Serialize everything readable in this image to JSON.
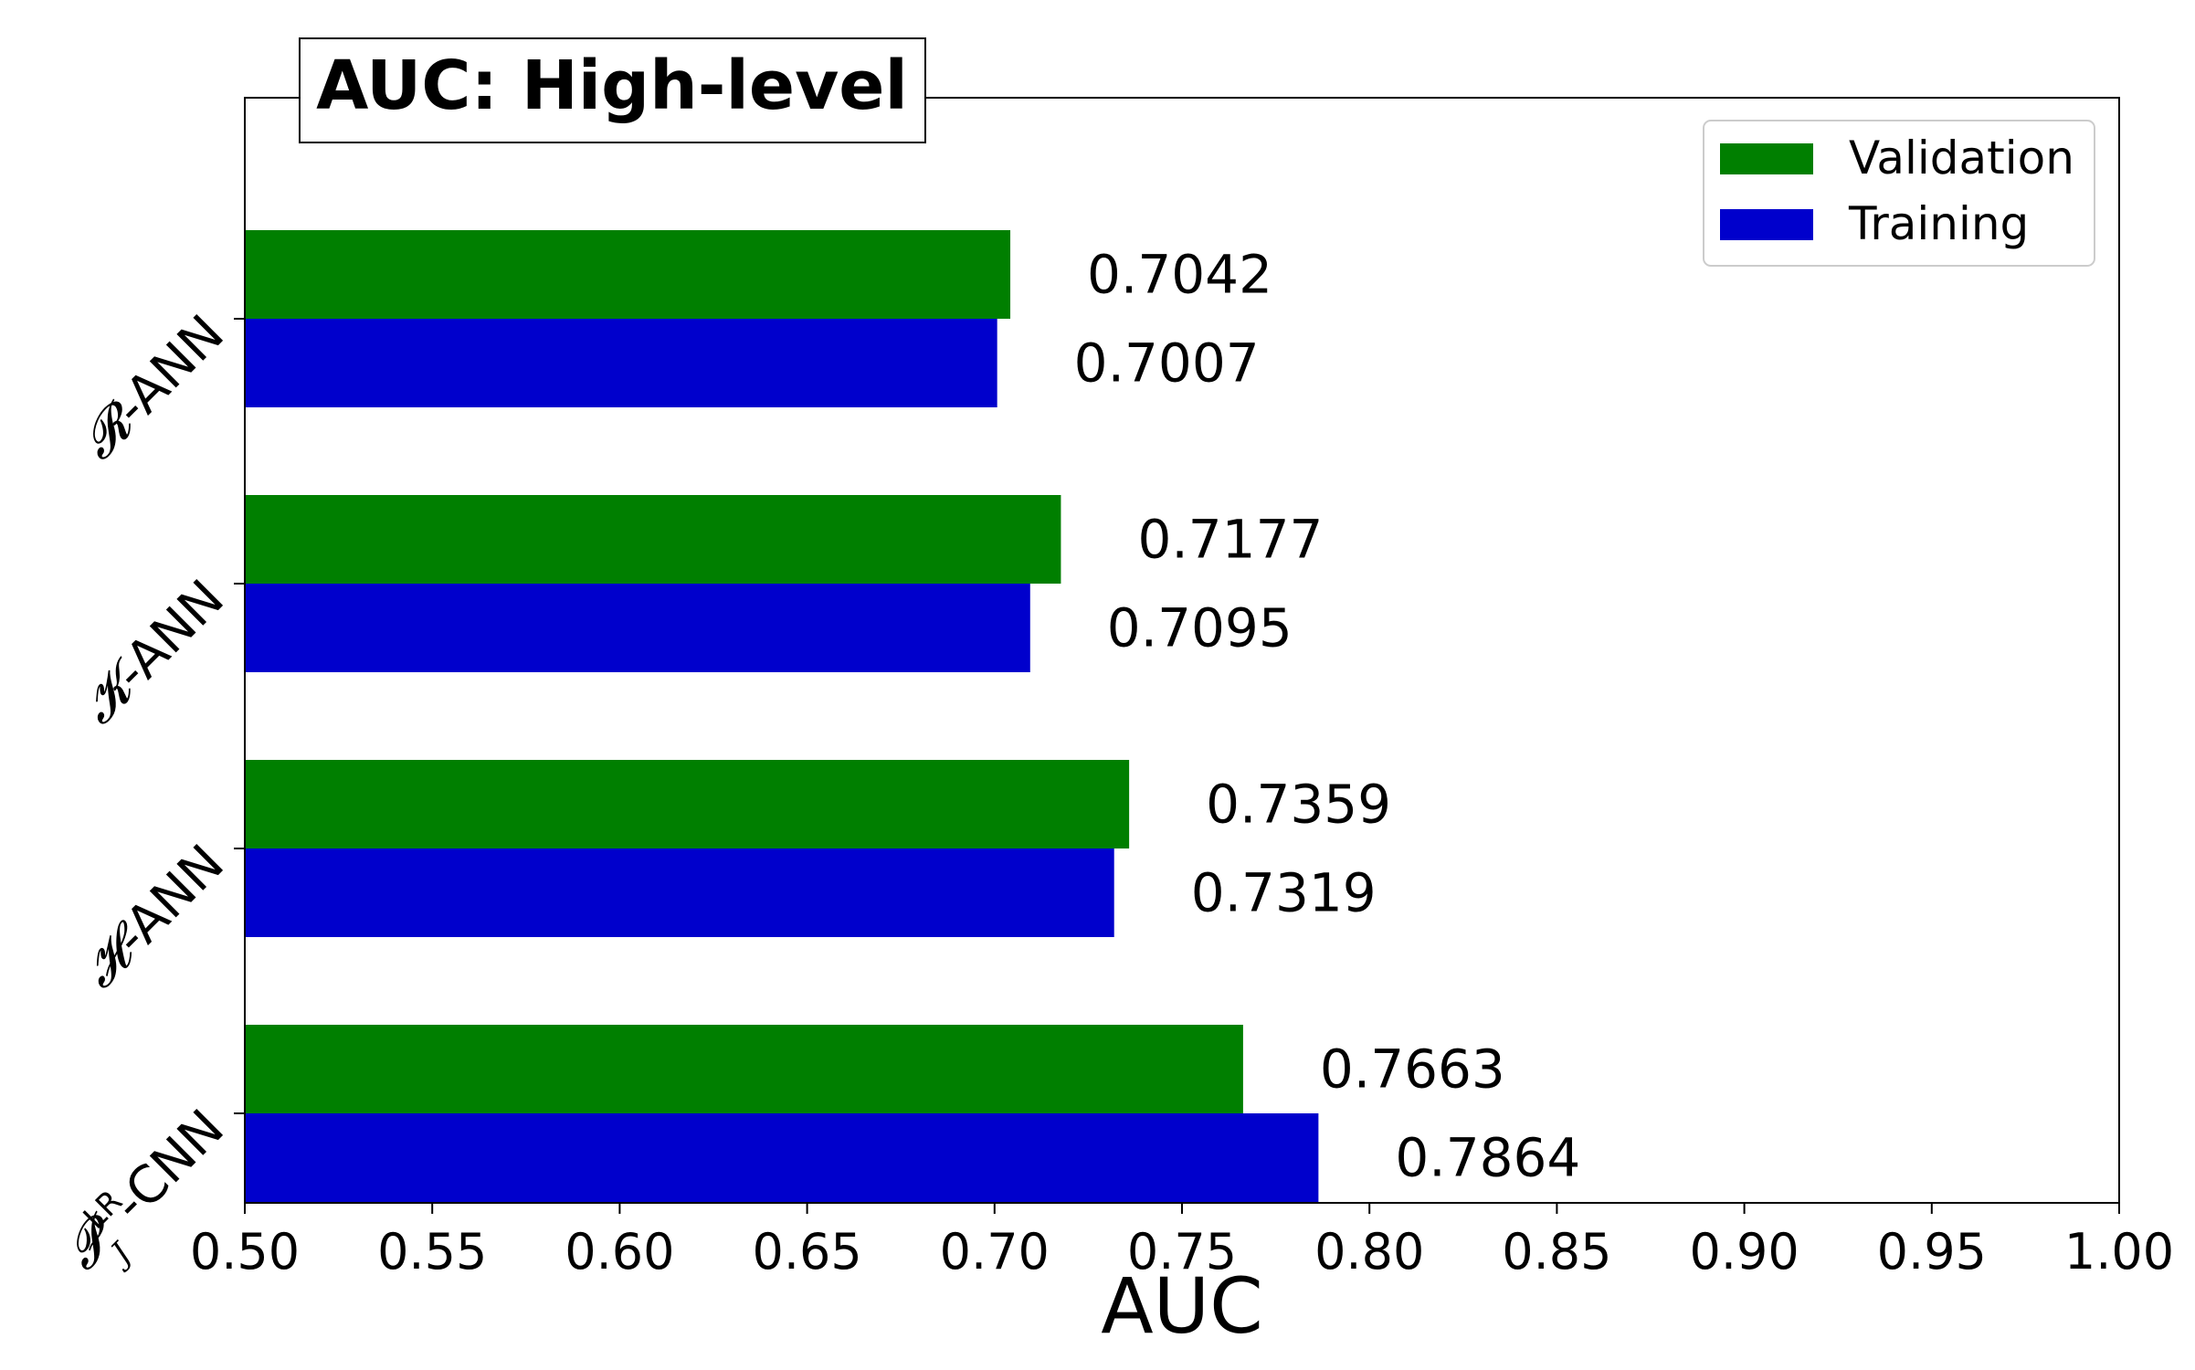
{
  "chart_data": {
    "type": "bar",
    "orientation": "horizontal",
    "title": "AUC: High-level",
    "xlabel": "AUC",
    "ylabel": "",
    "xlim": [
      0.5,
      1.0
    ],
    "xticks": [
      "0.50",
      "0.55",
      "0.60",
      "0.65",
      "0.70",
      "0.75",
      "0.80",
      "0.85",
      "0.90",
      "0.95",
      "1.00"
    ],
    "categories": [
      {
        "symbol": "𝓡",
        "suffix": "-ANN"
      },
      {
        "symbol": "𝓚",
        "suffix": "-ANN"
      },
      {
        "symbol": "𝓗",
        "suffix": "-ANN"
      },
      {
        "symbol": "𝓟",
        "sub": "J",
        "sup": "LR",
        "suffix": "-CNN"
      }
    ],
    "series": [
      {
        "name": "Validation",
        "color": "#007f00",
        "values": [
          0.7042,
          0.7177,
          0.7359,
          0.7663
        ],
        "labels": [
          "0.7042",
          "0.7177",
          "0.7359",
          "0.7663"
        ]
      },
      {
        "name": "Training",
        "color": "#0000cc",
        "values": [
          0.7007,
          0.7095,
          0.7319,
          0.7864
        ],
        "labels": [
          "0.7007",
          "0.7095",
          "0.7319",
          "0.7864"
        ]
      }
    ],
    "legend_position": "top-right",
    "grid": false
  }
}
